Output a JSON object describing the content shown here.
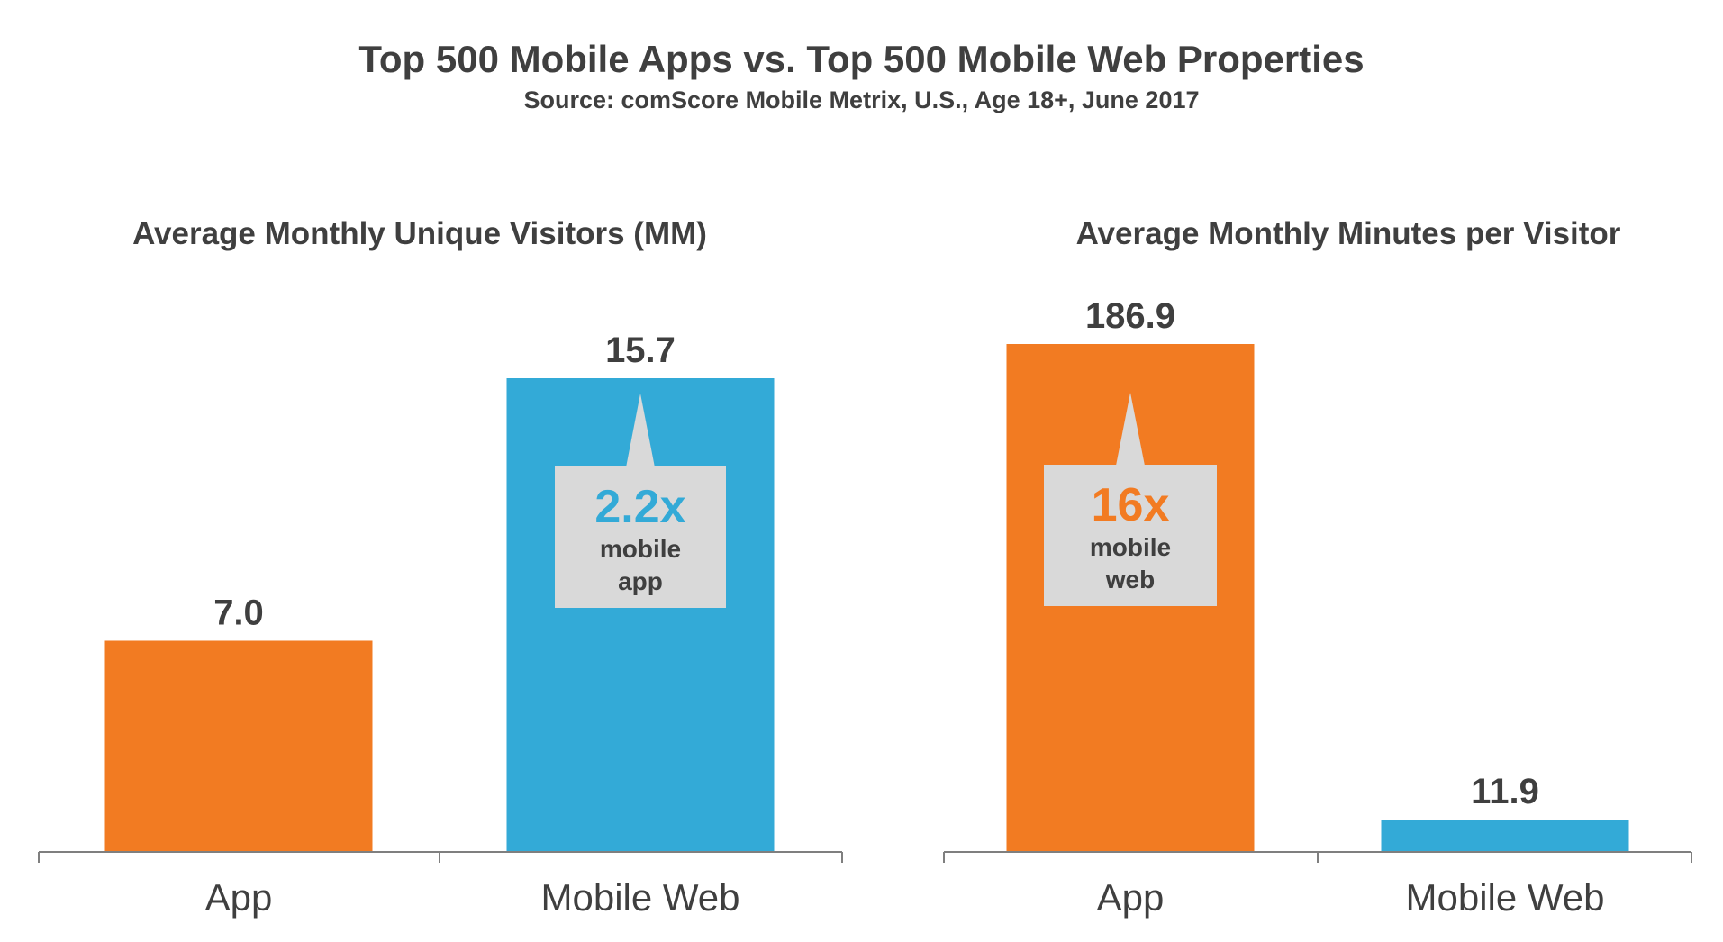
{
  "title": "Top 500 Mobile Apps vs. Top 500 Mobile Web Properties",
  "subtitle": "Source: comScore Mobile Metrix, U.S., Age 18+, June 2017",
  "colors": {
    "app": "#f27b22",
    "mobile_web": "#33aad7",
    "callout_bg": "#d9d9d9",
    "axis": "#7f7f7f",
    "text": "#3f3f3f"
  },
  "chart_data": [
    {
      "type": "bar",
      "title": "Average Monthly Unique Visitors (MM)",
      "categories": [
        "App",
        "Mobile Web"
      ],
      "values": [
        7.0,
        15.7
      ],
      "value_labels": [
        "7.0",
        "15.7"
      ],
      "ylim": [
        0,
        15.7
      ],
      "xlabel": "",
      "ylabel": "",
      "callout": {
        "multiplier": "2.2x",
        "line1": "mobile",
        "line2": "app",
        "on_category": "Mobile Web"
      }
    },
    {
      "type": "bar",
      "title": "Average Monthly Minutes per Visitor",
      "categories": [
        "App",
        "Mobile Web"
      ],
      "values": [
        186.9,
        11.9
      ],
      "value_labels": [
        "186.9",
        "11.9"
      ],
      "ylim": [
        0,
        186.9
      ],
      "xlabel": "",
      "ylabel": "",
      "callout": {
        "multiplier": "16x",
        "line1": "mobile",
        "line2": "web",
        "on_category": "App"
      }
    }
  ]
}
